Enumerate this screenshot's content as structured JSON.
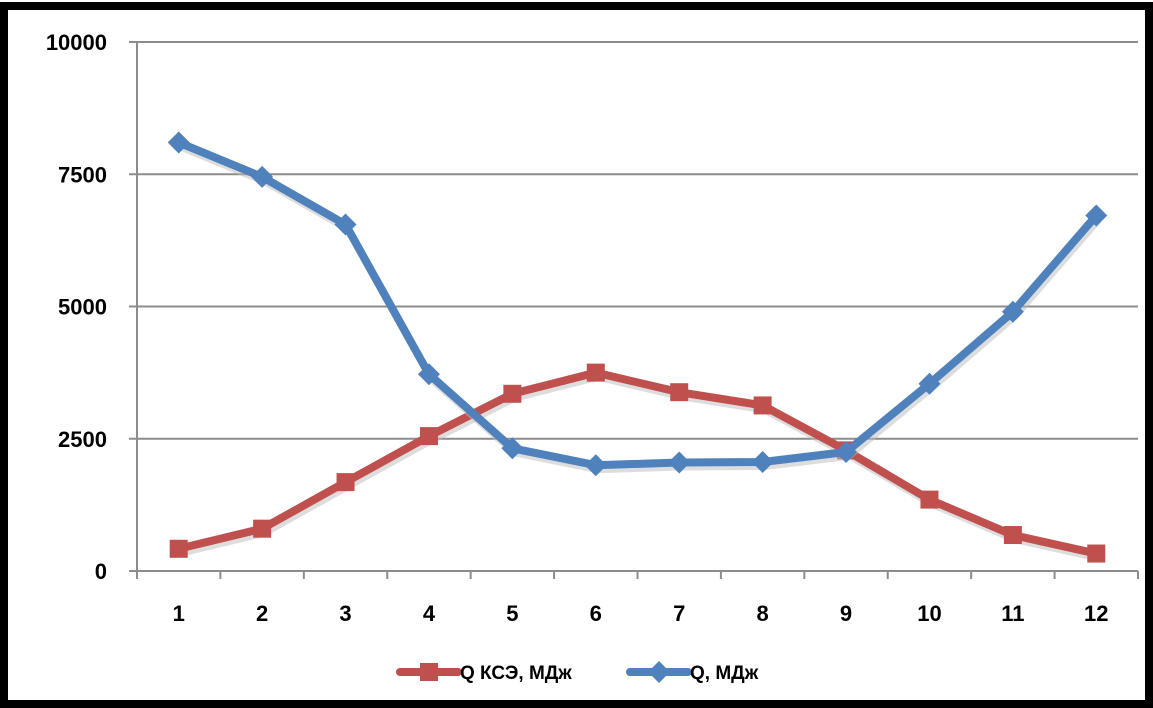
{
  "chart_data": {
    "type": "line",
    "categories": [
      "1",
      "2",
      "3",
      "4",
      "5",
      "6",
      "7",
      "8",
      "9",
      "10",
      "11",
      "12"
    ],
    "series": [
      {
        "name": "Q КСЭ, МДж",
        "color": "#c0504d",
        "marker": "square",
        "values": [
          420,
          800,
          1680,
          2550,
          3350,
          3750,
          3380,
          3130,
          2280,
          1350,
          680,
          330
        ]
      },
      {
        "name": "Q, МДж",
        "color": "#4f81bd",
        "marker": "diamond",
        "values": [
          8100,
          7450,
          6550,
          3720,
          2320,
          2000,
          2050,
          2060,
          2250,
          3540,
          4900,
          6720
        ]
      }
    ],
    "y_ticks": [
      0,
      2500,
      5000,
      7500,
      10000
    ],
    "y_tick_labels": [
      "0",
      "2500",
      "5000",
      "7500",
      "10000"
    ],
    "ylim": [
      0,
      10000
    ],
    "grid": "horizontal",
    "legend_position": "bottom",
    "title": "",
    "xlabel": "",
    "ylabel": ""
  }
}
